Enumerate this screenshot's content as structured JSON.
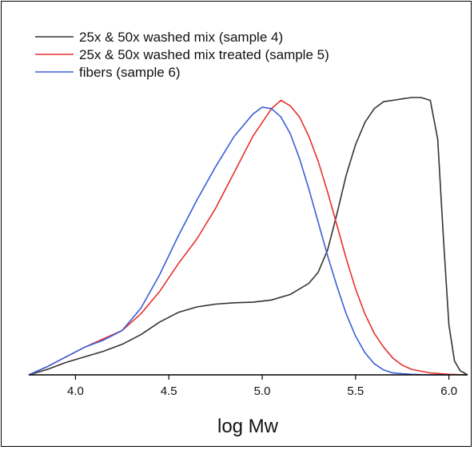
{
  "chart_data": {
    "type": "line",
    "title": "",
    "xlabel": "log Mw",
    "ylabel": "",
    "xlim": [
      3.75,
      6.1
    ],
    "ylim": [
      0,
      1.0
    ],
    "xticks": [
      4.0,
      4.5,
      5.0,
      5.5,
      6.0
    ],
    "xtick_labels": [
      "4.0",
      "4.5",
      "5.0",
      "5.5",
      "6.0"
    ],
    "grid": false,
    "legend": "top-left",
    "series": [
      {
        "name": "25x & 50x washed mix (sample 4)",
        "color": "#333333",
        "x": [
          3.75,
          3.85,
          3.95,
          4.05,
          4.15,
          4.25,
          4.35,
          4.45,
          4.55,
          4.65,
          4.75,
          4.85,
          4.95,
          5.05,
          5.15,
          5.25,
          5.3,
          5.35,
          5.4,
          5.45,
          5.5,
          5.55,
          5.6,
          5.65,
          5.7,
          5.75,
          5.8,
          5.85,
          5.9,
          5.94,
          5.97,
          6.0,
          6.03,
          6.06,
          6.1
        ],
        "y": [
          0.0,
          0.02,
          0.045,
          0.065,
          0.085,
          0.11,
          0.145,
          0.19,
          0.225,
          0.245,
          0.255,
          0.26,
          0.262,
          0.27,
          0.29,
          0.33,
          0.37,
          0.45,
          0.58,
          0.72,
          0.83,
          0.91,
          0.96,
          0.985,
          0.99,
          0.995,
          1.0,
          1.0,
          0.99,
          0.85,
          0.5,
          0.18,
          0.05,
          0.015,
          0.0
        ]
      },
      {
        "name": "25x & 50x washed mix treated (sample 5)",
        "color": "#e8302e",
        "x": [
          3.75,
          3.85,
          3.95,
          4.05,
          4.15,
          4.25,
          4.35,
          4.45,
          4.55,
          4.65,
          4.75,
          4.85,
          4.95,
          5.05,
          5.1,
          5.15,
          5.2,
          5.25,
          5.3,
          5.35,
          5.4,
          5.45,
          5.5,
          5.55,
          5.6,
          5.65,
          5.7,
          5.75,
          5.8,
          5.9,
          6.0,
          6.1
        ],
        "y": [
          0.0,
          0.03,
          0.065,
          0.1,
          0.13,
          0.16,
          0.22,
          0.3,
          0.4,
          0.49,
          0.6,
          0.73,
          0.86,
          0.96,
          0.99,
          0.97,
          0.93,
          0.86,
          0.77,
          0.66,
          0.54,
          0.42,
          0.31,
          0.22,
          0.15,
          0.1,
          0.06,
          0.035,
          0.02,
          0.007,
          0.002,
          0.0
        ]
      },
      {
        "name": "fibers (sample 6)",
        "color": "#3b5fd8",
        "x": [
          3.75,
          3.85,
          3.95,
          4.05,
          4.15,
          4.25,
          4.35,
          4.45,
          4.55,
          4.65,
          4.75,
          4.85,
          4.95,
          5.0,
          5.05,
          5.1,
          5.15,
          5.2,
          5.25,
          5.3,
          5.35,
          5.4,
          5.45,
          5.5,
          5.55,
          5.6,
          5.65,
          5.7,
          5.8,
          5.9,
          6.0
        ],
        "y": [
          0.0,
          0.03,
          0.065,
          0.1,
          0.125,
          0.16,
          0.24,
          0.36,
          0.5,
          0.63,
          0.75,
          0.86,
          0.94,
          0.965,
          0.96,
          0.93,
          0.87,
          0.78,
          0.67,
          0.55,
          0.43,
          0.32,
          0.22,
          0.14,
          0.08,
          0.04,
          0.018,
          0.007,
          0.002,
          0.0,
          0.0
        ]
      }
    ]
  }
}
